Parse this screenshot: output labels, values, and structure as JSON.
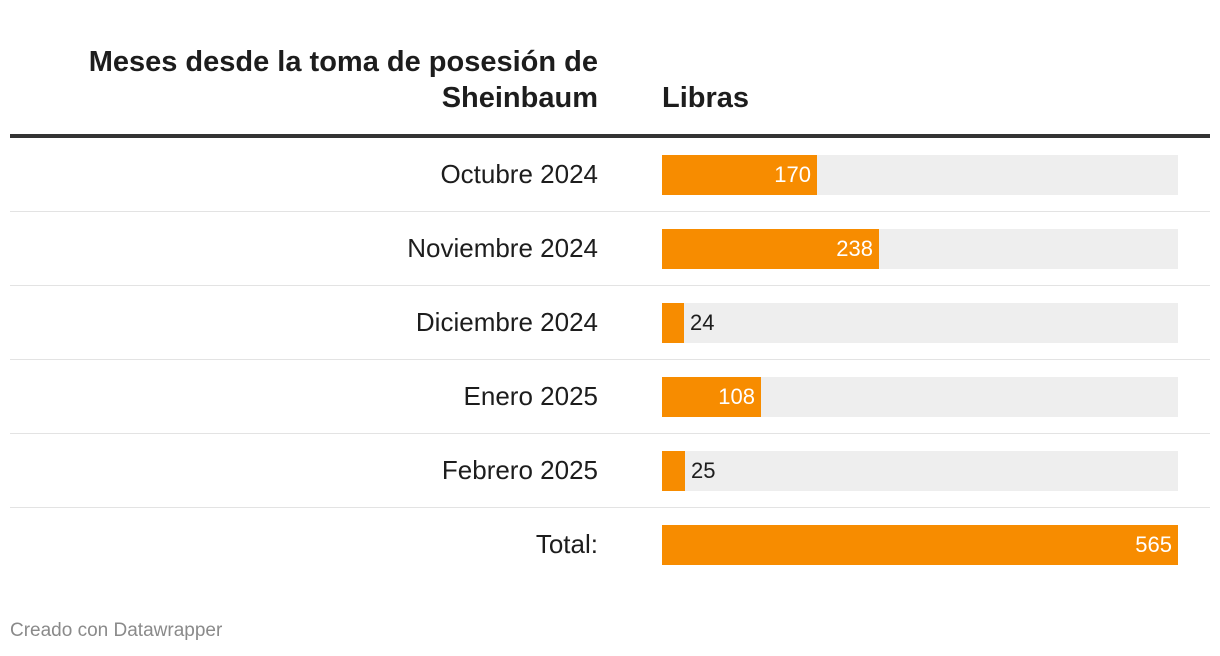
{
  "table": {
    "col1_header": "Meses desde la toma de posesión de Sheinbaum",
    "col2_header": "Libras"
  },
  "chart_data": {
    "type": "bar",
    "title": "",
    "xlabel": "Meses desde la toma de posesión de Sheinbaum",
    "ylabel": "Libras",
    "xlim": [
      0,
      565
    ],
    "categories": [
      "Octubre 2024",
      "Noviembre 2024",
      "Diciembre 2024",
      "Enero 2025",
      "Febrero 2025",
      "Total:"
    ],
    "values": [
      170,
      238,
      24,
      108,
      25,
      565
    ],
    "value_labels": [
      "170",
      "238",
      "24",
      "108",
      "25",
      "565"
    ],
    "bar_color": "#f78c00",
    "track_color": "#eeeeee"
  },
  "footer": {
    "credit": "Creado con Datawrapper"
  }
}
